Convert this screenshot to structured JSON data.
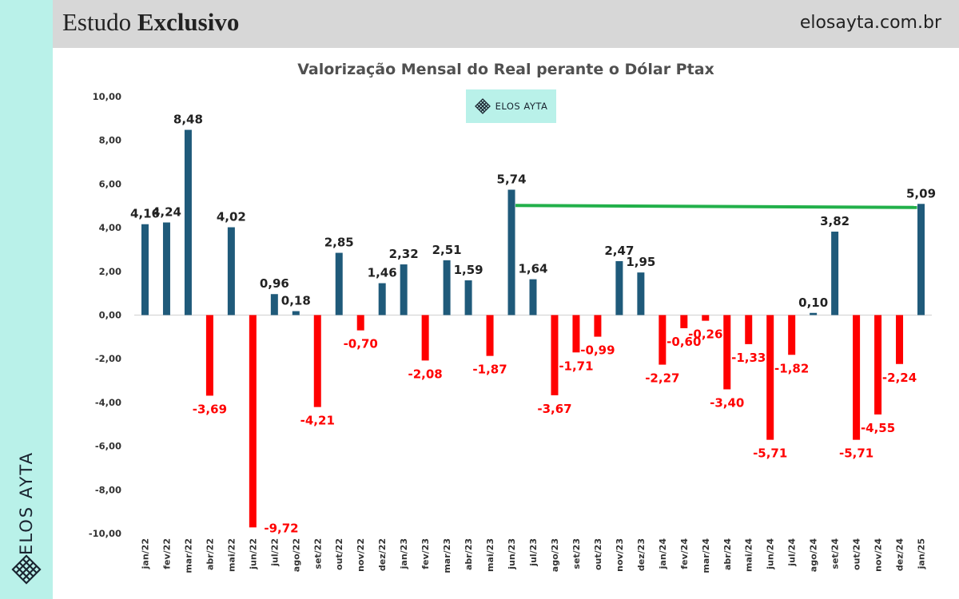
{
  "header": {
    "title_regular": "Estudo",
    "title_bold": "Exclusivo",
    "site": "elosayta.com.br"
  },
  "brand": {
    "name": "ELOS AYTA",
    "sidebar_name": "ELOS AYTA",
    "logo_icon": "lattice-diamond-icon"
  },
  "colors": {
    "positive": "#1f5a7a",
    "negative": "#ff0000",
    "trend": "#22b04a",
    "sidebar": "#b9f1e9",
    "header": "#d7d7d7"
  },
  "chart_data": {
    "type": "bar",
    "title": "Valorização Mensal do Real perante o Dólar Ptax",
    "xlabel": "",
    "ylabel": "",
    "ylim": [
      -10,
      10
    ],
    "yticks": [
      10,
      8,
      6,
      4,
      2,
      0,
      -2,
      -4,
      -6,
      -8,
      -10
    ],
    "ytick_labels": [
      "10,00",
      "8,00",
      "6,00",
      "4,00",
      "2,00",
      "0,00",
      "-2,00",
      "-4,00",
      "-6,00",
      "-8,00",
      "-10,00"
    ],
    "grid": false,
    "categories": [
      "jan/22",
      "fev/22",
      "mar/22",
      "abr/22",
      "mai/22",
      "jun/22",
      "jul/22",
      "ago/22",
      "set/22",
      "out/22",
      "nov/22",
      "dez/22",
      "jan/23",
      "fev/23",
      "mar/23",
      "abr/23",
      "mai/23",
      "jun/23",
      "jul/23",
      "ago/23",
      "set/23",
      "out/23",
      "nov/23",
      "dez/23",
      "jan/24",
      "fev/24",
      "mar/24",
      "abr/24",
      "mai/24",
      "jun/24",
      "jul/24",
      "ago/24",
      "set/24",
      "out/24",
      "nov/24",
      "dez/24",
      "jan/25"
    ],
    "values": [
      4.16,
      4.24,
      8.48,
      -3.69,
      4.02,
      -9.72,
      0.96,
      0.18,
      -4.21,
      2.85,
      -0.7,
      1.46,
      2.32,
      -2.08,
      2.51,
      1.59,
      -1.87,
      5.74,
      1.64,
      -3.67,
      -1.71,
      -0.99,
      2.47,
      1.95,
      -2.27,
      -0.6,
      -0.26,
      -3.4,
      -1.33,
      -5.71,
      -1.82,
      0.1,
      3.82,
      -5.71,
      -4.55,
      -2.24,
      5.09
    ],
    "value_labels": [
      "4,16",
      "4,24",
      "8,48",
      "-3,69",
      "4,02",
      "-9,72",
      "0,96",
      "0,18",
      "-4,21",
      "2,85",
      "-0,70",
      "1,46",
      "2,32",
      "-2,08",
      "2,51",
      "1,59",
      "-1,87",
      "5,74",
      "1,64",
      "-3,67",
      "-1,71",
      "-0,99",
      "2,47",
      "1,95",
      "-2,27",
      "-0,60",
      "-0,26",
      "-3,40",
      "-1,33",
      "-5,71",
      "-1,82",
      "0,10",
      "3,82",
      "-5,71",
      "-4,55",
      "-2,24",
      "5,09"
    ],
    "annotations": [
      {
        "type": "line",
        "from_category": "jun/23",
        "to_category": "jan/25",
        "from_value": 5.0,
        "to_value": 5.0
      }
    ]
  }
}
